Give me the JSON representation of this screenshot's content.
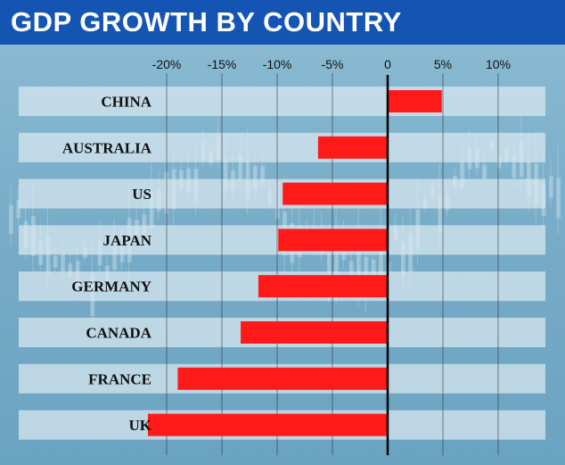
{
  "header": {
    "title": "GDP GROWTH BY COUNTRY"
  },
  "colors": {
    "title_bg": "#1455b4",
    "bar": "#ff1a1a",
    "row_band": "#dbe9f1",
    "zero_line": "#000000"
  },
  "chart_data": {
    "type": "bar",
    "orientation": "horizontal",
    "title": "GDP GROWTH BY COUNTRY",
    "xlabel": "",
    "ylabel": "",
    "categories": [
      "CHINA",
      "AUSTRALIA",
      "US",
      "JAPAN",
      "GERMANY",
      "CANADA",
      "FRANCE",
      "UK"
    ],
    "values": [
      4.9,
      -6.3,
      -9.5,
      -9.9,
      -11.7,
      -13.3,
      -19.0,
      -21.7
    ],
    "value_unit": "%",
    "xlim": [
      -20,
      10
    ],
    "xticks": [
      -20,
      -15,
      -10,
      -5,
      0,
      5,
      10
    ],
    "xtick_labels": [
      "-20%",
      "-15%",
      "-10%",
      "-5%",
      "0",
      "5%",
      "10%"
    ],
    "grid": true,
    "legend": "none"
  }
}
